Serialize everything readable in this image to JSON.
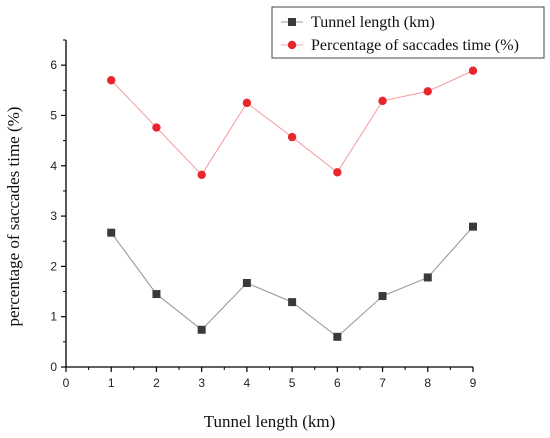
{
  "chart_data": {
    "type": "line",
    "x": [
      1,
      2,
      3,
      4,
      5,
      6,
      7,
      8,
      9
    ],
    "xlabel": "Tunnel length (km)",
    "ylabel": "percentage of saccades time (%)",
    "xlim": [
      0,
      9
    ],
    "ylim": [
      0,
      6.5
    ],
    "xticks": [
      "0",
      "1",
      "2",
      "3",
      "4",
      "5",
      "6",
      "7",
      "8",
      "9"
    ],
    "yticks": [
      "0",
      "1",
      "2",
      "3",
      "4",
      "5",
      "6"
    ],
    "grid": false,
    "legend_position": "top-right",
    "series": [
      {
        "name": "Tunnel length (km)",
        "marker": "square",
        "marker_color": "#3a3a3a",
        "line_color": "#9a9a9a",
        "values": [
          2.67,
          1.45,
          0.74,
          1.67,
          1.29,
          0.6,
          1.41,
          1.78,
          2.79
        ]
      },
      {
        "name": "Percentage of saccades time (%)",
        "marker": "circle",
        "marker_color": "#e8272d",
        "line_color": "#f5a3a6",
        "values": [
          5.7,
          4.76,
          3.82,
          5.25,
          4.57,
          3.87,
          5.29,
          5.48,
          5.89
        ]
      }
    ]
  }
}
